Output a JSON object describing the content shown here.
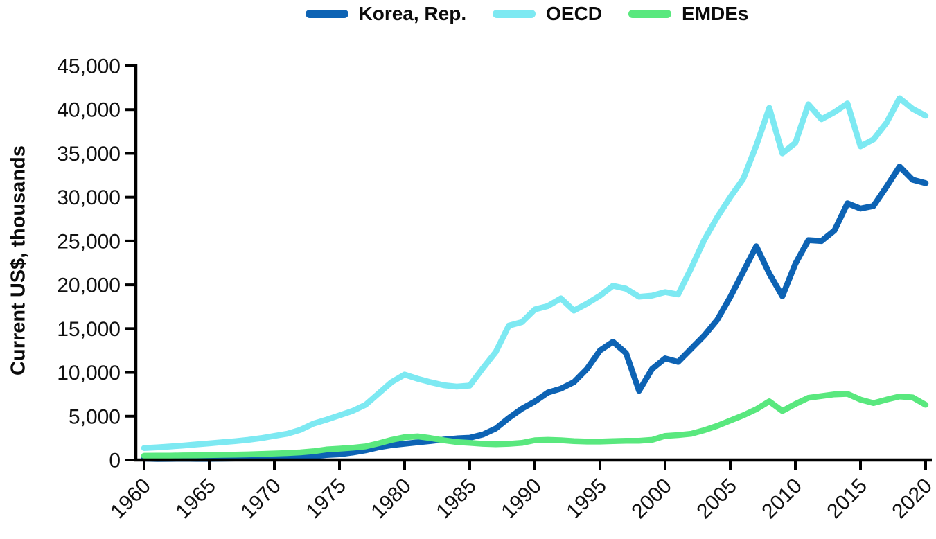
{
  "legend": {
    "items": [
      {
        "label": "Korea, Rep.",
        "color": "#0d63b4"
      },
      {
        "label": "OECD",
        "color": "#7de9f2"
      },
      {
        "label": "EMDEs",
        "color": "#59e87e"
      }
    ]
  },
  "axis_style": {
    "spine_color": "#000000",
    "tick_label_color": "#111111"
  },
  "chart_data": {
    "type": "line",
    "title": "",
    "xlabel": "",
    "ylabel": "Current US$, thousands",
    "grid": false,
    "legend_position": "top-center",
    "xlim": [
      1960,
      2020
    ],
    "ylim": [
      0,
      45000
    ],
    "x_tick_labels": [
      "1960",
      "1965",
      "1970",
      "1975",
      "1980",
      "1985",
      "1990",
      "1995",
      "2000",
      "2005",
      "2010",
      "2015",
      "2020"
    ],
    "y_ticks": [
      {
        "value": 0,
        "label": "0"
      },
      {
        "value": 5000,
        "label": "5,000"
      },
      {
        "value": 10000,
        "label": "10,000"
      },
      {
        "value": 15000,
        "label": "15,000"
      },
      {
        "value": 20000,
        "label": "20,000"
      },
      {
        "value": 25000,
        "label": "25,000"
      },
      {
        "value": 30000,
        "label": "30,000"
      },
      {
        "value": 35000,
        "label": "35,000"
      },
      {
        "value": 40000,
        "label": "40,000"
      },
      {
        "value": 45000,
        "label": "45,000"
      }
    ],
    "x": [
      1960,
      1961,
      1962,
      1963,
      1964,
      1965,
      1966,
      1967,
      1968,
      1969,
      1970,
      1971,
      1972,
      1973,
      1974,
      1975,
      1976,
      1977,
      1978,
      1979,
      1980,
      1981,
      1982,
      1983,
      1984,
      1985,
      1986,
      1987,
      1988,
      1989,
      1990,
      1991,
      1992,
      1993,
      1994,
      1995,
      1996,
      1997,
      1998,
      1999,
      2000,
      2001,
      2002,
      2003,
      2004,
      2005,
      2006,
      2007,
      2008,
      2009,
      2010,
      2011,
      2012,
      2013,
      2014,
      2015,
      2016,
      2017,
      2018,
      2019,
      2020
    ],
    "series": [
      {
        "name": "Korea, Rep.",
        "color": "#0d63b4",
        "values": [
          158,
          120,
          130,
          150,
          130,
          130,
          150,
          180,
          220,
          260,
          300,
          320,
          340,
          420,
          570,
          650,
          850,
          1100,
          1450,
          1700,
          1860,
          2020,
          2160,
          2330,
          2470,
          2540,
          2900,
          3600,
          4800,
          5850,
          6680,
          7700,
          8150,
          8900,
          10400,
          12500,
          13500,
          12200,
          7900,
          10400,
          11600,
          11200,
          12700,
          14200,
          16000,
          18600,
          21500,
          24400,
          21300,
          18700,
          22400,
          25100,
          25000,
          26200,
          29300,
          28700,
          29000,
          31200,
          33500,
          32000,
          31600
        ]
      },
      {
        "name": "OECD",
        "color": "#7de9f2",
        "values": [
          1370,
          1450,
          1540,
          1650,
          1780,
          1900,
          2030,
          2150,
          2300,
          2500,
          2750,
          3000,
          3450,
          4150,
          4600,
          5100,
          5600,
          6300,
          7600,
          8900,
          9750,
          9280,
          8880,
          8540,
          8380,
          8500,
          10460,
          12340,
          15340,
          15740,
          17190,
          17580,
          18450,
          17060,
          17850,
          18770,
          19900,
          19560,
          18640,
          18770,
          19170,
          18900,
          21900,
          25100,
          27700,
          30000,
          32100,
          35900,
          40200,
          35000,
          36200,
          40600,
          38900,
          39700,
          40700,
          35800,
          36600,
          38500,
          41300,
          40100,
          39300
        ]
      },
      {
        "name": "EMDEs",
        "color": "#59e87e",
        "values": [
          480,
          490,
          500,
          520,
          540,
          560,
          590,
          610,
          640,
          690,
          740,
          790,
          870,
          1000,
          1200,
          1300,
          1400,
          1550,
          1900,
          2300,
          2600,
          2700,
          2500,
          2250,
          2050,
          1950,
          1850,
          1800,
          1850,
          1950,
          2250,
          2300,
          2250,
          2150,
          2100,
          2100,
          2150,
          2200,
          2200,
          2300,
          2750,
          2850,
          3000,
          3400,
          3900,
          4500,
          5100,
          5800,
          6700,
          5600,
          6400,
          7100,
          7300,
          7500,
          7550,
          6900,
          6500,
          6900,
          7250,
          7150,
          6300
        ]
      }
    ]
  }
}
